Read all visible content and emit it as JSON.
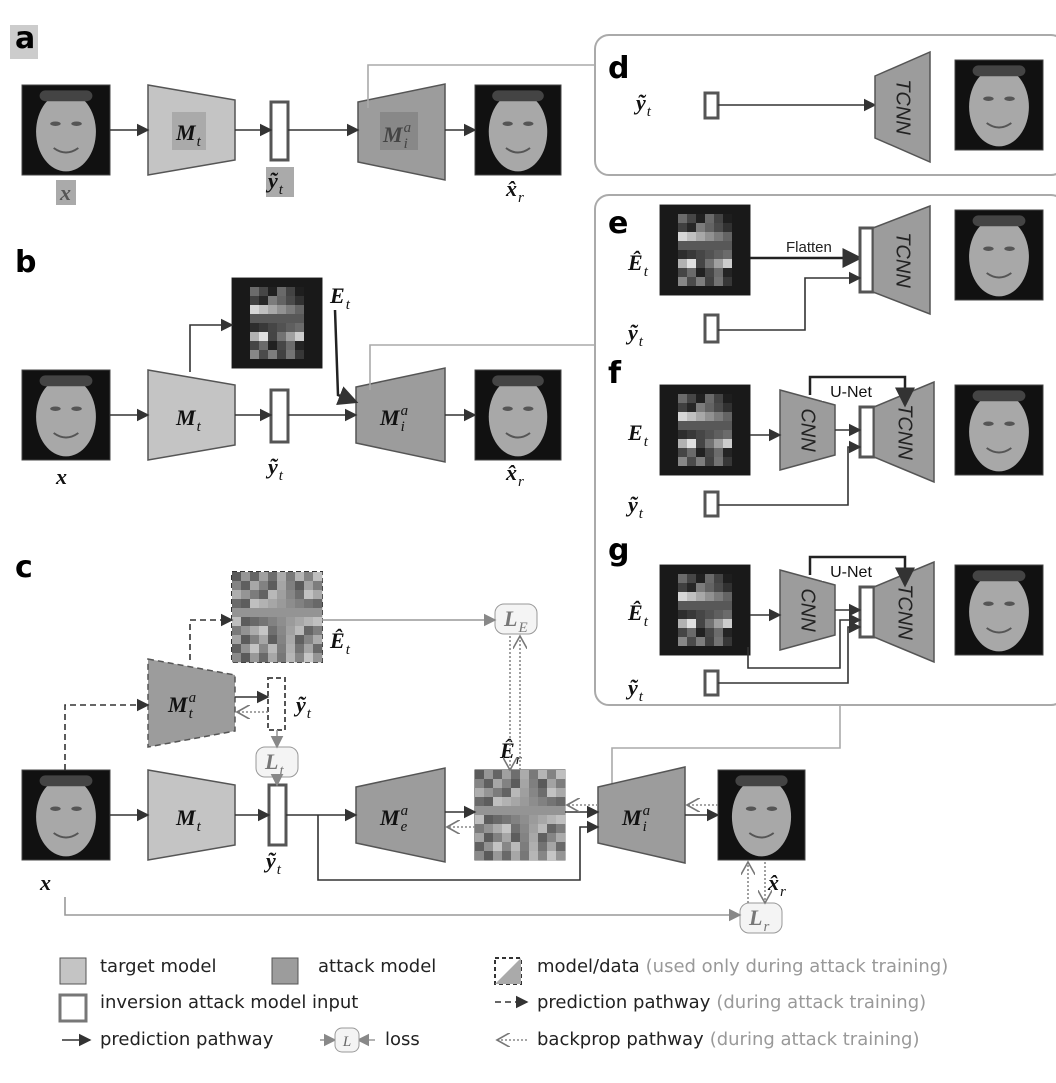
{
  "panel_labels": [
    "a",
    "b",
    "c",
    "d",
    "e",
    "f",
    "g"
  ],
  "panel_a": {
    "input": {
      "b": "x"
    },
    "target": {
      "b": "M",
      "sub": "t"
    },
    "output": {
      "b": "ỹ",
      "sub": "t"
    },
    "attack": {
      "b": "M",
      "sub": "i",
      "sup": "a"
    },
    "recon": {
      "b": "x̂",
      "sub": "r"
    }
  },
  "panel_b": {
    "heatmap": {
      "b": "E",
      "sub": "t"
    },
    "input": {
      "b": "x"
    },
    "target": {
      "b": "M",
      "sub": "t"
    },
    "output": {
      "b": "ỹ",
      "sub": "t"
    },
    "attack": {
      "b": "M",
      "sub": "i",
      "sup": "a"
    },
    "recon": {
      "b": "x̂",
      "sub": "r"
    }
  },
  "panel_c": {
    "heatmap": {
      "b": "Ê",
      "sub": "t"
    },
    "loss_e": {
      "b": "L",
      "sub": "E"
    },
    "attack_t": {
      "b": "M",
      "sub": "t",
      "sup": "a"
    },
    "output_a": {
      "b": "ỹ",
      "sub": "t"
    },
    "loss_t": {
      "b": "L",
      "sub": "t"
    },
    "input": {
      "b": "x"
    },
    "target": {
      "b": "M",
      "sub": "t"
    },
    "output": {
      "b": "ỹ",
      "sub": "t"
    },
    "attack_e": {
      "b": "M",
      "sub": "e",
      "sup": "a"
    },
    "heatmap_r": {
      "b": "Ê",
      "sub": "r"
    },
    "attack_i": {
      "b": "M",
      "sub": "i",
      "sup": "a"
    },
    "recon": {
      "b": "x̂",
      "sub": "r"
    },
    "loss_r": {
      "b": "L",
      "sub": "r"
    }
  },
  "panel_d": {
    "output": {
      "b": "ỹ",
      "sub": "t"
    },
    "decoder": "TCNN"
  },
  "panel_e": {
    "heatmap": {
      "b": "Ê",
      "sub": "t"
    },
    "flatten": "Flatten",
    "decoder": "TCNN",
    "output": {
      "b": "ỹ",
      "sub": "t"
    }
  },
  "panel_f": {
    "heatmap": {
      "b": "E",
      "sub": "t"
    },
    "encoder": "CNN",
    "unet": "U-Net",
    "decoder": "TCNN",
    "output": {
      "b": "ỹ",
      "sub": "t"
    }
  },
  "panel_g": {
    "heatmap": {
      "b": "Ê",
      "sub": "t"
    },
    "encoder": "CNN",
    "unet": "U-Net",
    "decoder": "TCNN",
    "output": {
      "b": "ỹ",
      "sub": "t"
    }
  },
  "legend": [
    {
      "text": "target model"
    },
    {
      "text": "attack model"
    },
    {
      "text": "model/data",
      "note": "(used only during attack training)"
    },
    {
      "text": "inversion attack model input"
    },
    {
      "text": "prediction pathway",
      "note": "(during attack training)"
    },
    {
      "text": "prediction pathway"
    },
    {
      "text": "loss",
      "icon": "L"
    },
    {
      "text": "backprop pathway",
      "note": "(during attack training)"
    }
  ]
}
